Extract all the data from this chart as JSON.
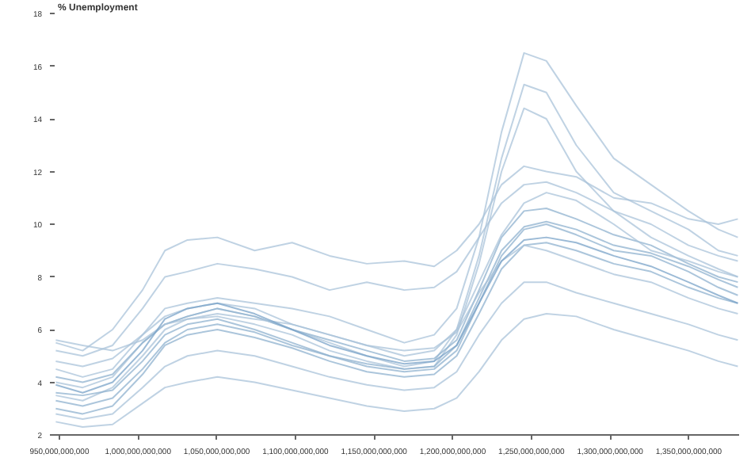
{
  "chart_data": {
    "type": "line",
    "ylabel": "% Unemployment",
    "x": [
      947700000000,
      964800000000,
      983800000000,
      1002850000000,
      1017100000000,
      1031400000000,
      1050400000000,
      1074100000000,
      1097900000000,
      1121700000000,
      1145400000000,
      1169200000000,
      1188200000000,
      1202500000000,
      1216700000000,
      1231000000000,
      1245300000000,
      1259500000000,
      1278500000000,
      1302300000000,
      1326000000000,
      1349800000000,
      1368800000000,
      1381200000000
    ],
    "xlim": [
      947000000000,
      1382000000000
    ],
    "xticks": [
      {
        "value": 950000000000,
        "label": "950,000,000,000"
      },
      {
        "value": 1000000000000,
        "label": "1,000,000,000,000"
      },
      {
        "value": 1050000000000,
        "label": "1,050,000,000,000"
      },
      {
        "value": 1100000000000,
        "label": "1,100,000,000,000"
      },
      {
        "value": 1150000000000,
        "label": "1,150,000,000,000"
      },
      {
        "value": 1200000000000,
        "label": "1,200,000,000,000"
      },
      {
        "value": 1250000000000,
        "label": "1,250,000,000,000"
      },
      {
        "value": 1300000000000,
        "label": "1,300,000,000,000"
      },
      {
        "value": 1350000000000,
        "label": "1,350,000,000,000"
      }
    ],
    "ylim": [
      2,
      18
    ],
    "yticks": [
      2,
      4,
      6,
      8,
      10,
      12,
      14,
      16,
      18
    ],
    "grid": false,
    "marker": "none",
    "line_style": "solid",
    "series": [
      {
        "color": "#a9c3da",
        "values": [
          4.5,
          4.2,
          4.5,
          5.8,
          6.8,
          7.0,
          7.2,
          7.0,
          6.8,
          6.5,
          6.0,
          5.5,
          5.8,
          6.8,
          9.5,
          13.5,
          16.5,
          16.2,
          14.5,
          12.5,
          11.5,
          10.5,
          9.8,
          9.5
        ]
      },
      {
        "color": "#a9c3da",
        "values": [
          4.0,
          3.8,
          4.2,
          5.5,
          6.2,
          6.5,
          6.8,
          6.5,
          6.0,
          5.5,
          5.0,
          4.6,
          4.8,
          6.0,
          8.8,
          12.5,
          15.3,
          15.0,
          13.0,
          11.2,
          10.5,
          9.8,
          9.0,
          8.8
        ]
      },
      {
        "color": "#a9c3da",
        "values": [
          3.5,
          3.3,
          3.8,
          5.0,
          6.0,
          6.4,
          6.5,
          6.2,
          5.8,
          5.2,
          4.8,
          4.5,
          4.6,
          5.8,
          8.5,
          12.0,
          14.4,
          14.0,
          12.0,
          10.5,
          9.5,
          8.8,
          8.3,
          8.0
        ]
      },
      {
        "color": "#a9c3da",
        "values": [
          5.5,
          5.2,
          6.0,
          7.5,
          9.0,
          9.4,
          9.5,
          9.0,
          9.3,
          8.8,
          8.5,
          8.6,
          8.4,
          9.0,
          10.0,
          11.5,
          12.2,
          12.0,
          11.8,
          11.0,
          10.8,
          10.2,
          10.0,
          10.2
        ]
      },
      {
        "color": "#a9c3da",
        "values": [
          5.2,
          5.0,
          5.4,
          6.8,
          8.0,
          8.2,
          8.5,
          8.3,
          8.0,
          7.5,
          7.8,
          7.5,
          7.6,
          8.2,
          9.5,
          10.8,
          11.5,
          11.6,
          11.2,
          10.5,
          10.0,
          9.2,
          8.8,
          8.6
        ]
      },
      {
        "color": "#8fb1cf",
        "values": [
          4.2,
          4.0,
          4.3,
          5.5,
          6.2,
          6.5,
          6.8,
          6.5,
          6.0,
          5.6,
          5.2,
          4.8,
          4.9,
          5.6,
          7.5,
          9.5,
          10.5,
          10.6,
          10.2,
          9.6,
          9.2,
          8.5,
          8.0,
          7.8
        ]
      },
      {
        "color": "#8fb1cf",
        "values": [
          3.6,
          3.5,
          3.7,
          4.8,
          5.8,
          6.2,
          6.4,
          6.0,
          5.5,
          5.0,
          4.6,
          4.4,
          4.5,
          5.2,
          7.0,
          8.8,
          9.8,
          10.0,
          9.6,
          9.0,
          8.8,
          8.2,
          7.6,
          7.3
        ]
      },
      {
        "color": "#8fb1cf",
        "values": [
          3.0,
          2.8,
          3.1,
          4.3,
          5.4,
          5.8,
          6.0,
          5.7,
          5.3,
          4.8,
          4.4,
          4.2,
          4.3,
          5.0,
          6.6,
          8.3,
          9.2,
          9.3,
          9.0,
          8.5,
          8.2,
          7.6,
          7.2,
          7.0
        ]
      },
      {
        "color": "#a9c3da",
        "values": [
          4.8,
          4.6,
          4.9,
          5.8,
          6.5,
          6.8,
          7.0,
          6.8,
          6.2,
          5.8,
          5.4,
          5.0,
          5.2,
          6.0,
          7.8,
          9.6,
          10.8,
          11.2,
          10.9,
          10.0,
          9.0,
          8.6,
          8.2,
          8.0
        ]
      },
      {
        "color": "#a9c3da",
        "values": [
          2.8,
          2.6,
          2.8,
          3.8,
          4.6,
          5.0,
          5.2,
          5.0,
          4.6,
          4.2,
          3.9,
          3.7,
          3.8,
          4.4,
          5.8,
          7.0,
          7.8,
          7.8,
          7.4,
          7.0,
          6.6,
          6.2,
          5.8,
          5.6
        ]
      },
      {
        "color": "#a9c3da",
        "values": [
          2.5,
          2.3,
          2.4,
          3.2,
          3.8,
          4.0,
          4.2,
          4.0,
          3.7,
          3.4,
          3.1,
          2.9,
          3.0,
          3.4,
          4.4,
          5.6,
          6.4,
          6.6,
          6.5,
          6.0,
          5.6,
          5.2,
          4.8,
          4.6
        ]
      },
      {
        "color": "#8fb1cf",
        "values": [
          3.3,
          3.1,
          3.4,
          4.5,
          5.5,
          6.0,
          6.2,
          5.9,
          5.4,
          5.0,
          4.7,
          4.5,
          4.6,
          5.4,
          7.2,
          9.0,
          9.9,
          10.1,
          9.8,
          9.2,
          8.9,
          8.4,
          7.9,
          7.6
        ]
      },
      {
        "color": "#a9c3da",
        "values": [
          5.6,
          5.4,
          5.2,
          5.6,
          6.2,
          6.4,
          6.6,
          6.4,
          6.2,
          5.8,
          5.4,
          5.2,
          5.3,
          5.9,
          7.4,
          8.6,
          9.2,
          9.0,
          8.6,
          8.1,
          7.8,
          7.2,
          6.8,
          6.6
        ]
      },
      {
        "color": "#7aa3c8",
        "values": [
          3.9,
          3.6,
          4.0,
          5.2,
          6.4,
          6.8,
          7.0,
          6.6,
          6.0,
          5.4,
          5.0,
          4.7,
          4.8,
          5.4,
          7.0,
          8.6,
          9.4,
          9.5,
          9.3,
          8.8,
          8.4,
          7.8,
          7.3,
          7.0
        ]
      }
    ]
  }
}
